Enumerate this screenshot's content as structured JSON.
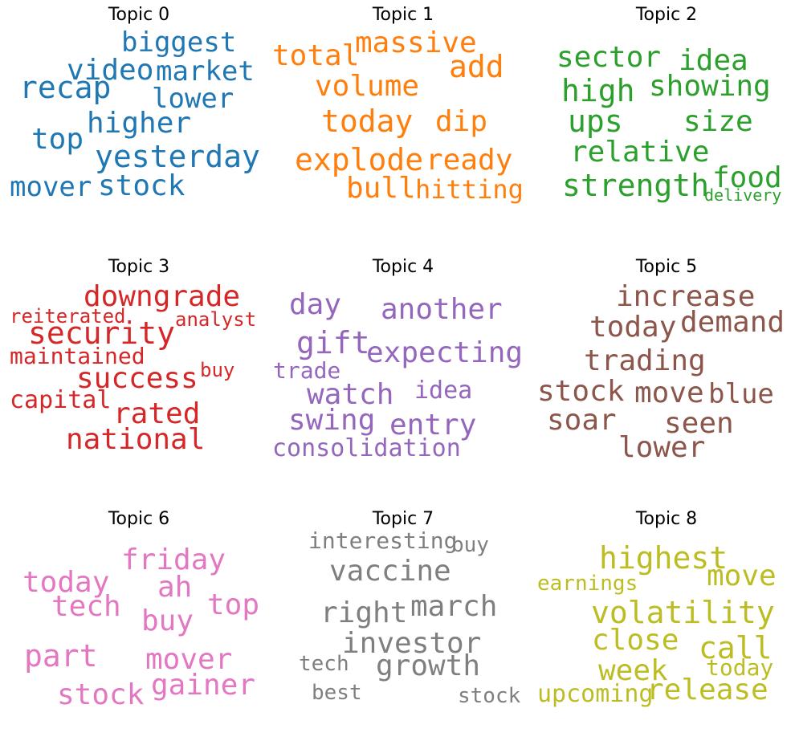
{
  "topics": [
    {
      "title": "Topic 0",
      "color": "#1f77b4",
      "words": [
        {
          "text": "biggest"
        },
        {
          "text": "video"
        },
        {
          "text": "market"
        },
        {
          "text": "recap"
        },
        {
          "text": "lower"
        },
        {
          "text": "higher"
        },
        {
          "text": "top"
        },
        {
          "text": "yesterday"
        },
        {
          "text": "mover"
        },
        {
          "text": "stock"
        }
      ]
    },
    {
      "title": "Topic 1",
      "color": "#ff7f0e",
      "words": [
        {
          "text": "massive"
        },
        {
          "text": "total"
        },
        {
          "text": "add"
        },
        {
          "text": "volume"
        },
        {
          "text": "today"
        },
        {
          "text": "dip"
        },
        {
          "text": "explode"
        },
        {
          "text": "ready"
        },
        {
          "text": "bull"
        },
        {
          "text": "hitting"
        }
      ]
    },
    {
      "title": "Topic 2",
      "color": "#2ca02c",
      "words": [
        {
          "text": "sector"
        },
        {
          "text": "idea"
        },
        {
          "text": "high"
        },
        {
          "text": "showing"
        },
        {
          "text": "ups"
        },
        {
          "text": "size"
        },
        {
          "text": "relative"
        },
        {
          "text": "food"
        },
        {
          "text": "strength"
        },
        {
          "text": "delivery"
        }
      ]
    },
    {
      "title": "Topic 3",
      "color": "#d62728",
      "words": [
        {
          "text": "downgrade"
        },
        {
          "text": "reiterated"
        },
        {
          "text": "analyst"
        },
        {
          "text": "security"
        },
        {
          "text": "maintained"
        },
        {
          "text": "buy"
        },
        {
          "text": "success"
        },
        {
          "text": "capital"
        },
        {
          "text": "rated"
        },
        {
          "text": "national"
        }
      ]
    },
    {
      "title": "Topic 4",
      "color": "#9467bd",
      "words": [
        {
          "text": "day"
        },
        {
          "text": "another"
        },
        {
          "text": "gift"
        },
        {
          "text": "expecting"
        },
        {
          "text": "trade"
        },
        {
          "text": "watch"
        },
        {
          "text": "idea"
        },
        {
          "text": "swing"
        },
        {
          "text": "entry"
        },
        {
          "text": "consolidation"
        }
      ]
    },
    {
      "title": "Topic 5",
      "color": "#8c564b",
      "words": [
        {
          "text": "increase"
        },
        {
          "text": "today"
        },
        {
          "text": "demand"
        },
        {
          "text": "trading"
        },
        {
          "text": "stock"
        },
        {
          "text": "move"
        },
        {
          "text": "blue"
        },
        {
          "text": "soar"
        },
        {
          "text": "seen"
        },
        {
          "text": "lower"
        }
      ]
    },
    {
      "title": "Topic 6",
      "color": "#e377c2",
      "words": [
        {
          "text": "friday"
        },
        {
          "text": "today"
        },
        {
          "text": "ah"
        },
        {
          "text": "top"
        },
        {
          "text": "tech"
        },
        {
          "text": "buy"
        },
        {
          "text": "part"
        },
        {
          "text": "mover"
        },
        {
          "text": "gainer"
        },
        {
          "text": "stock"
        }
      ]
    },
    {
      "title": "Topic 7",
      "color": "#7f7f7f",
      "words": [
        {
          "text": "interesting"
        },
        {
          "text": "buy"
        },
        {
          "text": "vaccine"
        },
        {
          "text": "right"
        },
        {
          "text": "march"
        },
        {
          "text": "investor"
        },
        {
          "text": "tech"
        },
        {
          "text": "growth"
        },
        {
          "text": "best"
        },
        {
          "text": "stock"
        }
      ]
    },
    {
      "title": "Topic 8",
      "color": "#bcbd22",
      "words": [
        {
          "text": "highest"
        },
        {
          "text": "earnings"
        },
        {
          "text": "move"
        },
        {
          "text": "volatility"
        },
        {
          "text": "close"
        },
        {
          "text": "call"
        },
        {
          "text": "today"
        },
        {
          "text": "week"
        },
        {
          "text": "upcoming"
        },
        {
          "text": "release"
        }
      ]
    }
  ]
}
